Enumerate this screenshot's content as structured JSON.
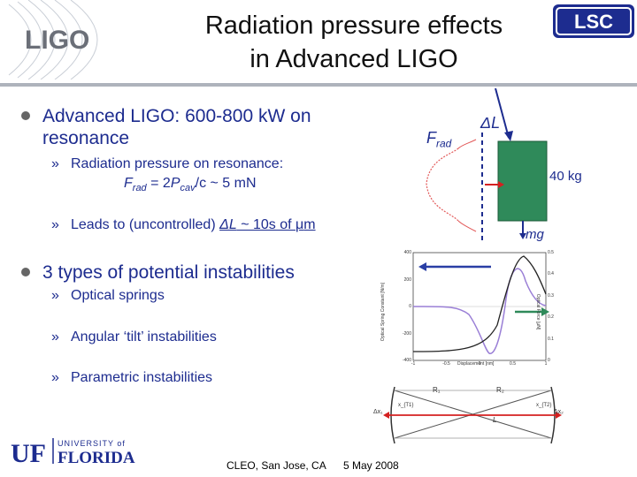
{
  "title": {
    "line1": "Radiation pressure effects",
    "line2": "in Advanced LIGO"
  },
  "logos": {
    "ligo": "LIGO",
    "lsc": "LSC",
    "uf_small": "UNIVERSITY of",
    "uf_big": "FLORIDA",
    "uf_mark": "UF"
  },
  "bullets": [
    {
      "line1": "Advanced LIGO: 600-800 kW on",
      "line2": "resonance",
      "subs": [
        {
          "text": "Radiation pressure on resonance:"
        },
        {
          "text": "Leads to (uncontrolled) "
        }
      ]
    },
    {
      "line1": "3 types of potential instabilities",
      "subs": [
        {
          "text": "Optical springs"
        },
        {
          "text": "Angular ‘tilt’ instabilities"
        },
        {
          "text": "Parametric instabilities"
        }
      ]
    }
  ],
  "formula": {
    "F": "F",
    "rad": "rad",
    "eq": " = 2",
    "P": "P",
    "cav": "cav",
    "rest": "/c ~ 5 mN"
  },
  "leads": {
    "delta": "ΔL",
    "tail": " ~ 10s of ",
    "mu": "μ",
    "m": "m"
  },
  "diagram": {
    "f_rad_F": "F",
    "f_rad_sub": "rad",
    "delta_L": "ΔL",
    "mass": "40 kg",
    "mg": "mg"
  },
  "plot": {
    "y_left_ticks": [
      "400",
      "200",
      "0",
      "-200",
      "-400"
    ],
    "y_right_ticks": [
      "0.5",
      "0.4",
      "0.3",
      "0.2",
      "0.1",
      "0"
    ],
    "x_ticks": [
      "-1",
      "-0.5",
      "0",
      "0.5",
      "1"
    ],
    "xlabel": "Displacement [nm]",
    "ylabel_left": "Optical Spring Constant [N/m]",
    "ylabel_right": "Optical Force [μN]"
  },
  "cavity": {
    "R1": "R₁",
    "R2": "R₂",
    "L": "L",
    "dx1": "Δx₁",
    "dx2": "Δx₂",
    "xa": "x_{T1}",
    "xb": "x_{T2}"
  },
  "footer": {
    "venue": "CLEO, San Jose, CA",
    "date": "5 May 2008"
  },
  "colors": {
    "text_blue": "#1d2c8f",
    "mass_green": "#2f8a5a",
    "arrow_red": "#d42020",
    "lsc_blue": "#1d2c8f"
  }
}
